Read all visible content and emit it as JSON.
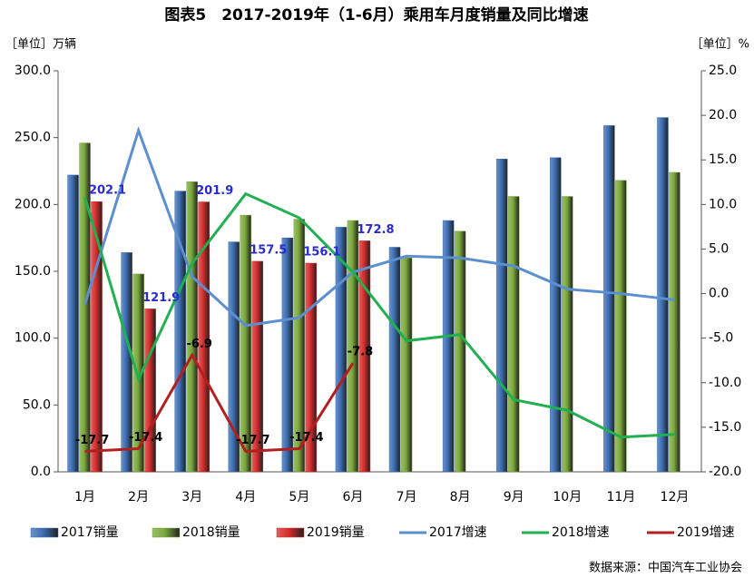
{
  "chart_data": {
    "type": "bar-line",
    "title": "图表5　2017-2019年（1-6月）乘用车月度销量及同比增速",
    "y_label": "［单位］万辆",
    "y2_label": "［单位］%",
    "source": "数据来源：中国汽车工业协会",
    "categories": [
      "1月",
      "2月",
      "3月",
      "4月",
      "5月",
      "6月",
      "7月",
      "8月",
      "9月",
      "10月",
      "11月",
      "12月"
    ],
    "ylim": [
      0,
      300
    ],
    "yticks": [
      {
        "value": 0,
        "label": "0.0"
      },
      {
        "value": 50,
        "label": "50.0"
      },
      {
        "value": 100,
        "label": "100.0"
      },
      {
        "value": 150,
        "label": "150.0"
      },
      {
        "value": 200,
        "label": "200.0"
      },
      {
        "value": 250,
        "label": "250.0"
      },
      {
        "value": 300,
        "label": "300.0"
      }
    ],
    "y2lim": [
      -20,
      25
    ],
    "y2ticks": [
      {
        "value": -20,
        "label": "-20.0"
      },
      {
        "value": -15,
        "label": "-15.0"
      },
      {
        "value": -10,
        "label": "-10.0"
      },
      {
        "value": -5,
        "label": "-5.0"
      },
      {
        "value": 0,
        "label": "0.0"
      },
      {
        "value": 5,
        "label": "5.0"
      },
      {
        "value": 10,
        "label": "10.0"
      },
      {
        "value": 15,
        "label": "15.0"
      },
      {
        "value": 20,
        "label": "20.0"
      },
      {
        "value": 25,
        "label": "25.0"
      }
    ],
    "grid": false,
    "series": [
      {
        "name": "2017销量",
        "type": "bar",
        "color": "#3a6db3",
        "values": [
          222,
          164,
          210,
          172,
          175,
          183,
          168,
          188,
          234,
          235,
          259,
          265
        ]
      },
      {
        "name": "2018销量",
        "type": "bar",
        "color": "#7aa83a",
        "values": [
          246,
          148,
          217,
          192,
          189,
          188,
          160,
          180,
          206,
          206,
          218,
          224
        ]
      },
      {
        "name": "2019销量",
        "type": "bar",
        "color": "#d42a2a",
        "labels": true,
        "label_color": "#2a2ad4",
        "values": [
          202.1,
          121.9,
          201.9,
          157.5,
          156.1,
          172.8,
          null,
          null,
          null,
          null,
          null,
          null
        ]
      },
      {
        "name": "2017增速",
        "type": "line",
        "axis": "y2",
        "color": "#5b8fd0",
        "values": [
          -1.2,
          18.3,
          1.9,
          -3.6,
          -2.7,
          2.4,
          4.2,
          4.0,
          3.1,
          0.5,
          0,
          -0.7
        ]
      },
      {
        "name": "2018增速",
        "type": "line",
        "axis": "y2",
        "color": "#1fb050",
        "values": [
          10.8,
          -9.6,
          3.4,
          11.2,
          8.5,
          2.4,
          -5.3,
          -4.6,
          -11.9,
          -13.1,
          -16.1,
          -15.8
        ]
      },
      {
        "name": "2019增速",
        "type": "line",
        "axis": "y2",
        "color": "#b41e1e",
        "labels": true,
        "label_color": "#000000",
        "values": [
          -17.7,
          -17.4,
          -6.9,
          -17.7,
          -17.4,
          -7.8,
          null,
          null,
          null,
          null,
          null,
          null
        ]
      }
    ]
  }
}
